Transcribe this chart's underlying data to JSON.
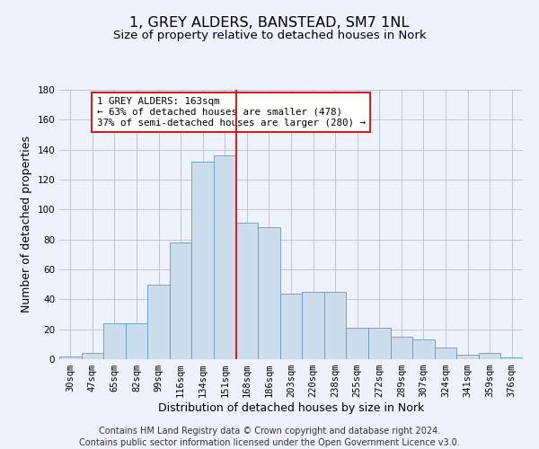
{
  "title": "1, GREY ALDERS, BANSTEAD, SM7 1NL",
  "subtitle": "Size of property relative to detached houses in Nork",
  "xlabel": "Distribution of detached houses by size in Nork",
  "ylabel": "Number of detached properties",
  "footer_line1": "Contains HM Land Registry data © Crown copyright and database right 2024.",
  "footer_line2": "Contains public sector information licensed under the Open Government Licence v3.0.",
  "bar_labels": [
    "30sqm",
    "47sqm",
    "65sqm",
    "82sqm",
    "99sqm",
    "116sqm",
    "134sqm",
    "151sqm",
    "168sqm",
    "186sqm",
    "203sqm",
    "220sqm",
    "238sqm",
    "255sqm",
    "272sqm",
    "289sqm",
    "307sqm",
    "324sqm",
    "341sqm",
    "359sqm",
    "376sqm"
  ],
  "bar_values": [
    2,
    4,
    24,
    24,
    50,
    78,
    132,
    136,
    91,
    88,
    44,
    45,
    45,
    21,
    21,
    15,
    13,
    8,
    3,
    4,
    1
  ],
  "bar_color": "#ccdded",
  "bar_edge_color": "#6699bb",
  "ylim": [
    0,
    180
  ],
  "yticks": [
    0,
    20,
    40,
    60,
    80,
    100,
    120,
    140,
    160,
    180
  ],
  "vline_x_index": 7.5,
  "vline_color": "#cc2222",
  "annotation_text": "1 GREY ALDERS: 163sqm\n← 63% of detached houses are smaller (478)\n37% of semi-detached houses are larger (280) →",
  "annotation_box_color": "#ffffff",
  "annotation_box_edge_color": "#cc2222",
  "background_color": "#eef2fc",
  "grid_color": "#bbbbcc",
  "title_fontsize": 11.5,
  "subtitle_fontsize": 9.5,
  "axis_label_fontsize": 9,
  "tick_fontsize": 7.5,
  "annotation_fontsize": 7.8,
  "footer_fontsize": 7
}
